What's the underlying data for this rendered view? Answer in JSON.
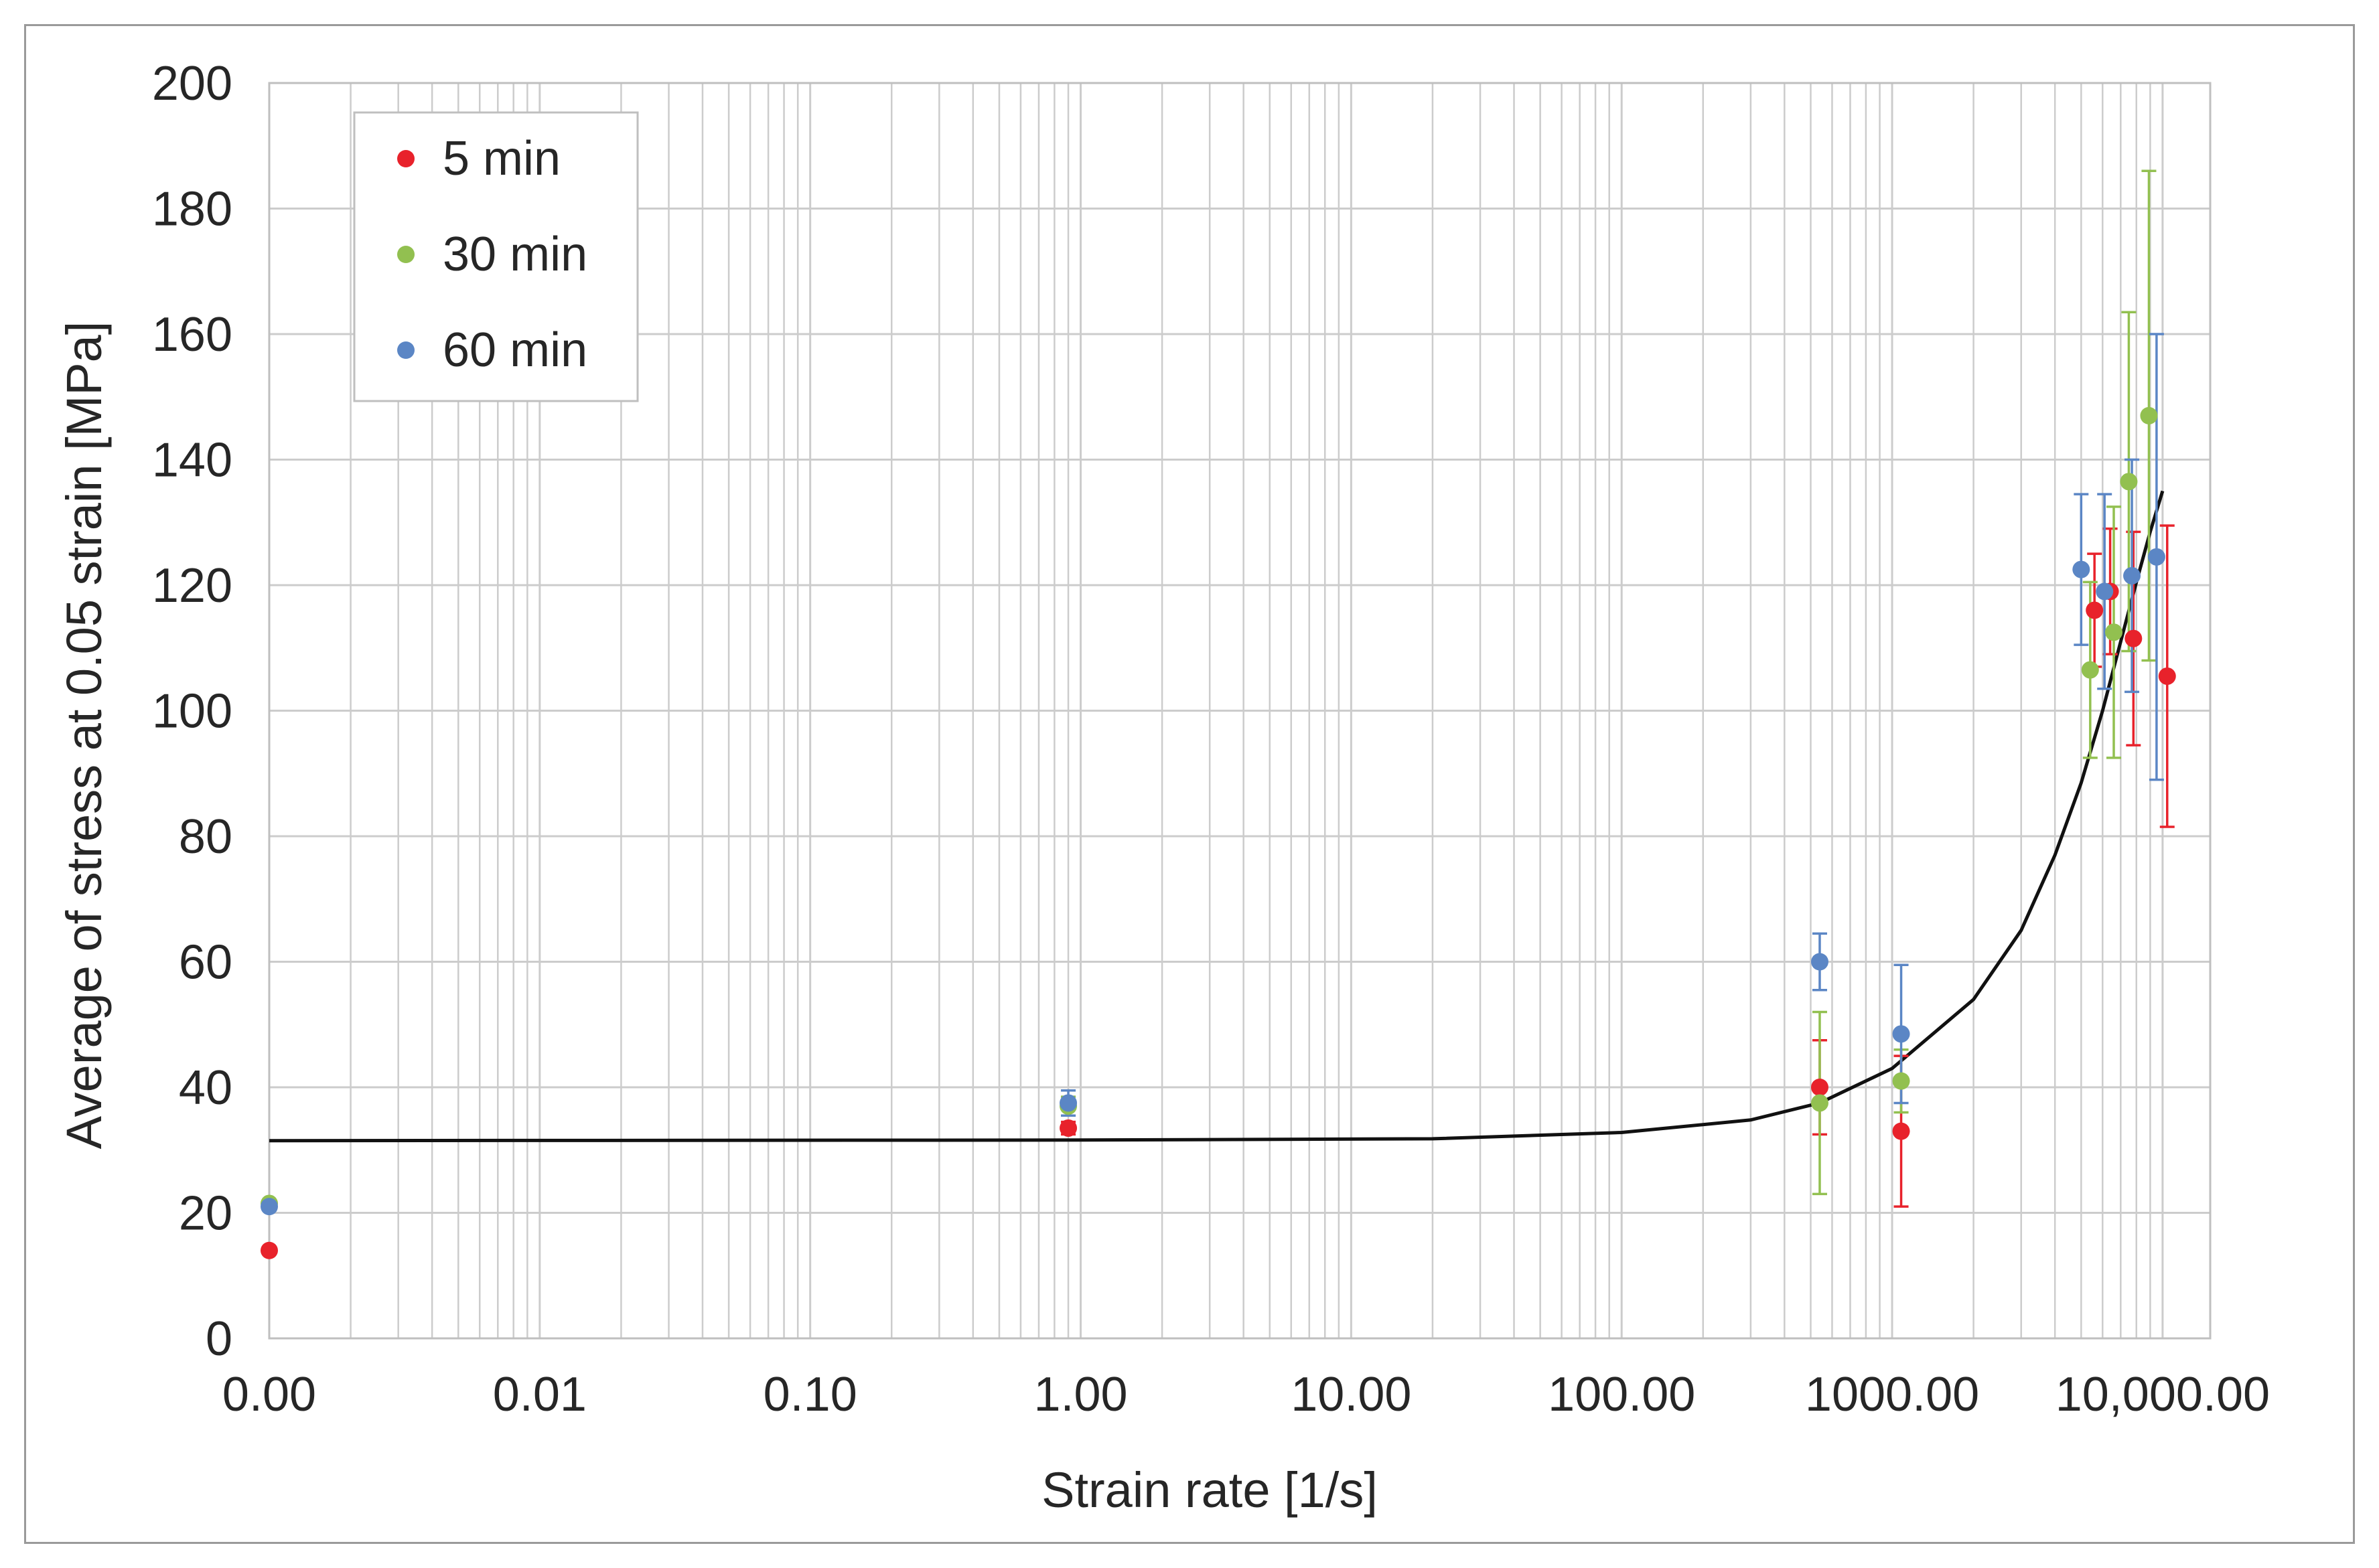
{
  "chart_data": {
    "type": "scatter",
    "xlabel": "Strain rate [1/s]",
    "ylabel": "Average of stress at 0.05 strain [MPa]",
    "x_scale": "log",
    "xlim": [
      0.001,
      15000
    ],
    "ylim": [
      0,
      200
    ],
    "y_ticks": [
      "0",
      "20",
      "40",
      "60",
      "80",
      "100",
      "120",
      "140",
      "160",
      "180",
      "200"
    ],
    "x_tick_values": [
      0.001,
      0.01,
      0.1,
      1,
      10,
      100,
      1000,
      10000
    ],
    "x_tick_labels": [
      "0.00",
      "0.01",
      "0.10",
      "1.00",
      "10.00",
      "100.00",
      "1000.00",
      "10,000.00"
    ],
    "grid": true,
    "legend_position": "top-left",
    "colors": {
      "5 min": "#e8222b",
      "30 min": "#92c050",
      "60 min": "#5b86c5",
      "fit": "#111111",
      "grid": "#cccccc"
    },
    "series": [
      {
        "name": "5 min",
        "points": [
          {
            "x": 0.001,
            "y": 14.0
          },
          {
            "x": 0.9,
            "y": 33.5,
            "err": 1.0
          },
          {
            "x": 540,
            "y": 40.0,
            "err": 7.5
          },
          {
            "x": 1080,
            "y": 33.0,
            "err": 12.0
          },
          {
            "x": 5600,
            "y": 116.0,
            "err": 9.0
          },
          {
            "x": 6400,
            "y": 119.0,
            "err": 10.0
          },
          {
            "x": 7800,
            "y": 111.5,
            "err": 17.0
          },
          {
            "x": 10400,
            "y": 105.5,
            "err": 24.0
          }
        ]
      },
      {
        "name": "30 min",
        "points": [
          {
            "x": 0.001,
            "y": 21.5
          },
          {
            "x": 0.9,
            "y": 37.0,
            "err": 1.5
          },
          {
            "x": 540,
            "y": 37.5,
            "err": 14.5
          },
          {
            "x": 1080,
            "y": 41.0,
            "err": 5.0
          },
          {
            "x": 5400,
            "y": 106.5,
            "err": 14.0
          },
          {
            "x": 6600,
            "y": 112.5,
            "err": 20.0
          },
          {
            "x": 7500,
            "y": 136.5,
            "err": 27.0
          },
          {
            "x": 8900,
            "y": 147.0,
            "err": 39.0
          }
        ]
      },
      {
        "name": "60 min",
        "points": [
          {
            "x": 0.001,
            "y": 21.0
          },
          {
            "x": 0.9,
            "y": 37.5,
            "err": 2.0
          },
          {
            "x": 540,
            "y": 60.0,
            "err": 4.5
          },
          {
            "x": 1080,
            "y": 48.5,
            "err": 11.0
          },
          {
            "x": 5000,
            "y": 122.5,
            "err": 12.0
          },
          {
            "x": 6100,
            "y": 119.0,
            "err": 15.5
          },
          {
            "x": 7700,
            "y": 121.5,
            "err": 18.5
          },
          {
            "x": 9500,
            "y": 124.5,
            "err": 35.5
          }
        ]
      },
      {
        "name": "fit",
        "type": "line",
        "points": [
          {
            "x": 0.001,
            "y": 31.5
          },
          {
            "x": 1,
            "y": 31.6
          },
          {
            "x": 20,
            "y": 31.8
          },
          {
            "x": 100,
            "y": 32.8
          },
          {
            "x": 300,
            "y": 34.8
          },
          {
            "x": 540,
            "y": 37.5
          },
          {
            "x": 1000,
            "y": 43.0
          },
          {
            "x": 2000,
            "y": 54.0
          },
          {
            "x": 3000,
            "y": 65.0
          },
          {
            "x": 4000,
            "y": 77.0
          },
          {
            "x": 5000,
            "y": 88.5
          },
          {
            "x": 6000,
            "y": 100.0
          },
          {
            "x": 7000,
            "y": 111.0
          },
          {
            "x": 8000,
            "y": 120.5
          },
          {
            "x": 9000,
            "y": 128.5
          },
          {
            "x": 10000,
            "y": 135.0
          }
        ]
      }
    ]
  }
}
